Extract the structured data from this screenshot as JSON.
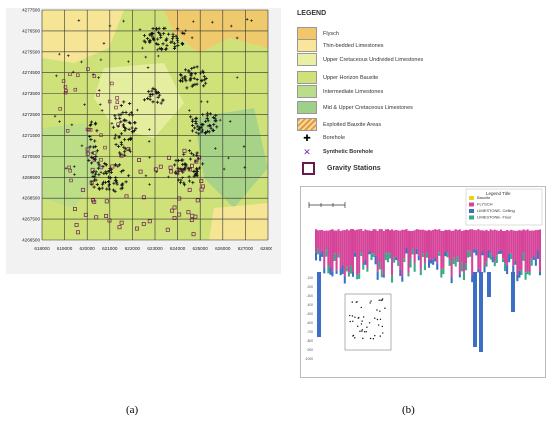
{
  "panel_a": {
    "caption": "(a)",
    "y_ticks": [
      "4277500",
      "4276500",
      "4275500",
      "4274500",
      "4273500",
      "4272500",
      "4271500",
      "4270500",
      "4269500",
      "4268500",
      "4267500",
      "4266500"
    ],
    "x_ticks": [
      "618000",
      "619000",
      "620000",
      "621000",
      "622000",
      "623000",
      "624000",
      "625000",
      "626000",
      "627000",
      "628000"
    ],
    "legend": {
      "title": "LEGEND",
      "items": [
        {
          "label": "Flysch",
          "color": "#f3c66b",
          "kind": "swatch"
        },
        {
          "label": "Thin-bedded Limestones",
          "color": "#fbe59a",
          "kind": "swatch"
        },
        {
          "label": "Upper Cretaceous Undivided Limestones",
          "color": "#e9f0a6",
          "kind": "swatch"
        },
        {
          "label": "Upper Horizon Bauxite",
          "color": "#cfe27a",
          "kind": "swatch"
        },
        {
          "label": "Intermediate Limestones",
          "color": "#b9dd8a",
          "kind": "swatch"
        },
        {
          "label": "Mid & Upper Cretaceous Limestones",
          "color": "#9fd08a",
          "kind": "swatch"
        },
        {
          "label": "Exploited Bauxite Areas",
          "color": "#e39a3a",
          "kind": "hatch"
        },
        {
          "label": "Borehole",
          "kind": "cross"
        },
        {
          "label": "Synthetic Borehole",
          "kind": "x"
        },
        {
          "label": "Gravity Stations",
          "kind": "square"
        }
      ]
    }
  },
  "panel_b": {
    "caption": "(b)",
    "legend_title": "Legend Title",
    "legend_items": [
      {
        "label": "Bauxite",
        "color": "#e6d520"
      },
      {
        "label": "FLYSCH",
        "color": "#d6449a"
      },
      {
        "label": "LIMESTONE- Ceiling",
        "color": "#3a6fc4"
      },
      {
        "label": "LIMESTONE- Floor",
        "color": "#3aa88a"
      }
    ],
    "depth_ticks": [
      "-100",
      "-200",
      "-300",
      "-400",
      "-500",
      "-600",
      "-700",
      "-800",
      "-900",
      "-1000"
    ]
  },
  "colors": {
    "grid": "#333333",
    "borehole": "#111111",
    "gravity": "#6a1b4d",
    "synthetic": "#7b2fa6"
  }
}
